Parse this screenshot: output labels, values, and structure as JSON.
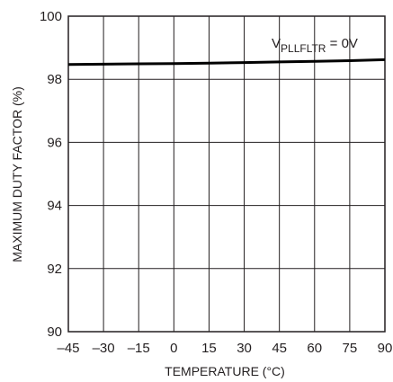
{
  "chart_data": {
    "type": "line",
    "xlabel": "TEMPERATURE (°C)",
    "ylabel": "MAXIMUM DUTY FACTOR (%)",
    "xlim": [
      -45,
      90
    ],
    "ylim": [
      90,
      100
    ],
    "x_ticks": [
      -45,
      -30,
      -15,
      0,
      15,
      30,
      45,
      60,
      75,
      90
    ],
    "y_ticks": [
      90,
      92,
      94,
      96,
      98,
      100
    ],
    "x_tick_labels": [
      "–45",
      "–30",
      "–15",
      "0",
      "15",
      "30",
      "45",
      "60",
      "75",
      "90"
    ],
    "y_tick_labels": [
      "90",
      "92",
      "94",
      "96",
      "98",
      "100"
    ],
    "grid": true,
    "annotation": {
      "main": "V",
      "subscript": "PLLFLTR",
      "suffix": " = 0V"
    },
    "series": [
      {
        "x": [
          -45,
          -30,
          -15,
          0,
          15,
          30,
          45,
          60,
          75,
          90
        ],
        "y": [
          98.47,
          98.48,
          98.49,
          98.5,
          98.51,
          98.53,
          98.55,
          98.57,
          98.59,
          98.62
        ],
        "color": "#000000"
      }
    ],
    "colors": {
      "grid": "#231f20",
      "text": "#231f20",
      "curve": "#000000"
    }
  }
}
